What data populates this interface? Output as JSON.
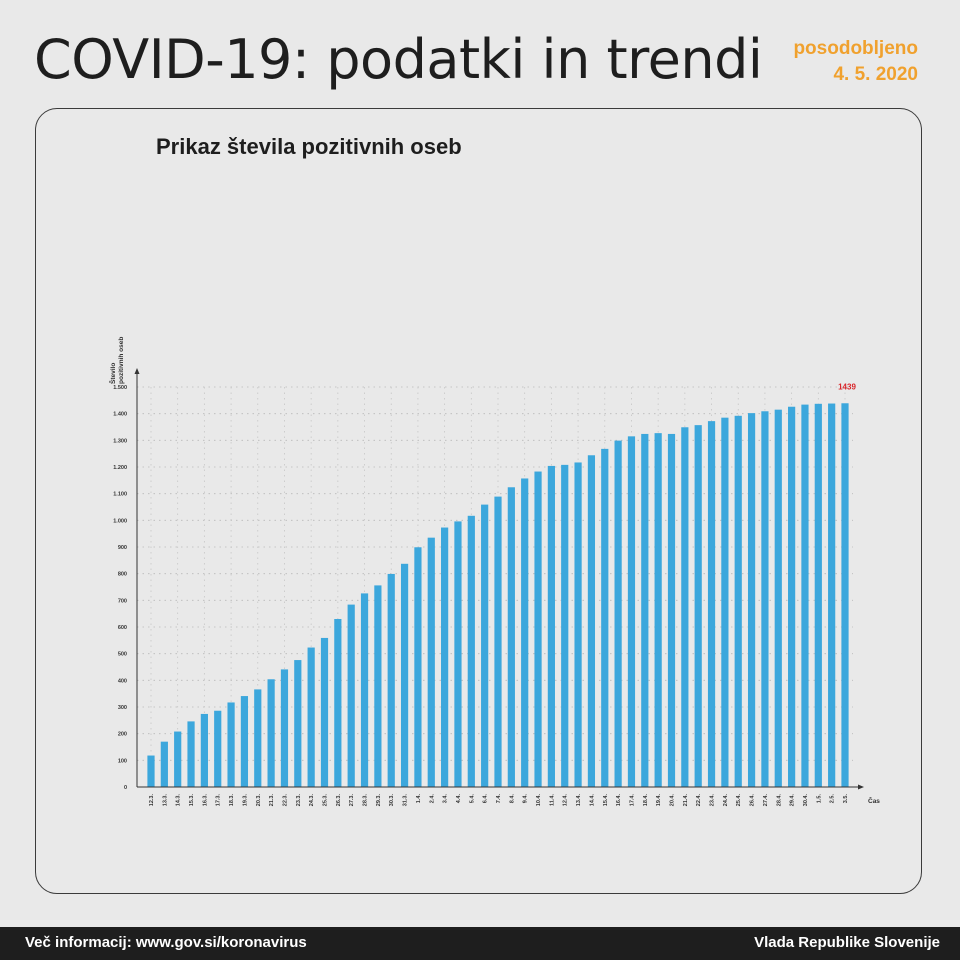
{
  "header": {
    "title": "COVID-19: podatki in trendi",
    "updated_label": "posodobljeno",
    "updated_date": "4. 5. 2020",
    "accent_color": "#f0a12e"
  },
  "footer": {
    "info": "Več informacij: www.gov.si/koronavirus",
    "org": "Vlada Republike Slovenije"
  },
  "chart_data": {
    "type": "bar",
    "title": "Prikaz števila pozitivnih oseb",
    "ylabel_line1": "Število",
    "ylabel_line2": "pozitivnih oseb",
    "xlabel": "Čas",
    "ylim": [
      0,
      1500
    ],
    "yticks": [
      0,
      100,
      200,
      300,
      400,
      500,
      600,
      700,
      800,
      900,
      1000,
      1100,
      1200,
      1300,
      1400,
      1500
    ],
    "ytick_labels": [
      "0",
      "100",
      "200",
      "300",
      "400",
      "500",
      "600",
      "700",
      "800",
      "900",
      "1.000",
      "1.100",
      "1.200",
      "1.300",
      "1.400",
      "1.500"
    ],
    "grid": true,
    "bar_color": "#3ca7dc",
    "highlight_color": "#d9262b",
    "highlight_label": "1439",
    "categories": [
      "12.3.",
      "13.3.",
      "14.3.",
      "15.3.",
      "16.3.",
      "17.3.",
      "18.3.",
      "19.3.",
      "20.3.",
      "21.3.",
      "22.3.",
      "23.3.",
      "24.3.",
      "25.3.",
      "26.3.",
      "27.3.",
      "28.3.",
      "29.3.",
      "30.3.",
      "31.3.",
      "1.4.",
      "2.4.",
      "3.4.",
      "4.4.",
      "5.4.",
      "6.4.",
      "7.4.",
      "8.4.",
      "9.4.",
      "10.4.",
      "11.4.",
      "12.4.",
      "13.4.",
      "14.4.",
      "15.4.",
      "16.4.",
      "17.4.",
      "18.4.",
      "19.4.",
      "20.4.",
      "21.4.",
      "22.4.",
      "23.4.",
      "24.4.",
      "25.4.",
      "26.4.",
      "27.4.",
      "28.4.",
      "29.4.",
      "30.4.",
      "1.5.",
      "2.5.",
      "3.5."
    ],
    "values": [
      118,
      170,
      208,
      246,
      274,
      286,
      317,
      341,
      366,
      404,
      441,
      476,
      523,
      559,
      630,
      684,
      726,
      756,
      799,
      837,
      899,
      935,
      973,
      996,
      1017,
      1059,
      1089,
      1124,
      1157,
      1183,
      1204,
      1208,
      1217,
      1244,
      1268,
      1299,
      1315,
      1324,
      1327,
      1324,
      1349,
      1357,
      1372,
      1385,
      1392,
      1402,
      1409,
      1415,
      1426,
      1434,
      1437,
      1438,
      1439
    ]
  }
}
